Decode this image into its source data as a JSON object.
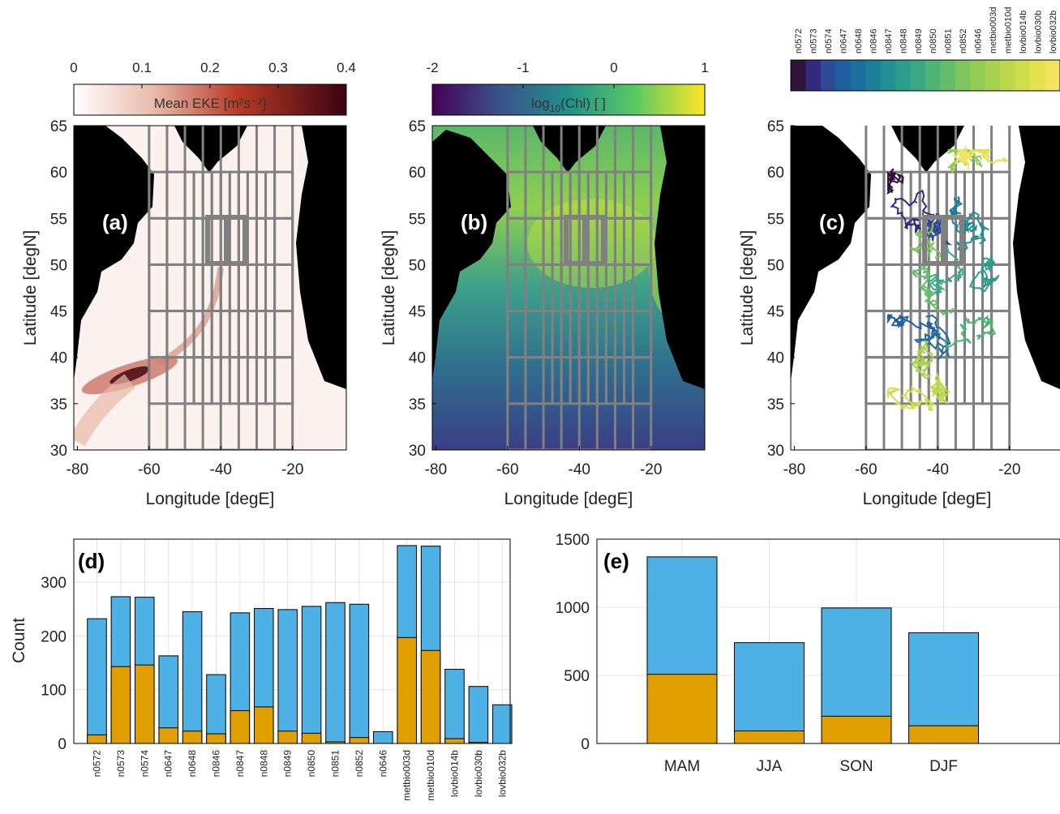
{
  "colors": {
    "land": "#000000",
    "grid": "#808080",
    "blue": "#4DB1E6",
    "orange": "#E09F00",
    "eke_low": "#ffffff",
    "eke_mid": "#b83a26",
    "eke_high": "#3a0410"
  },
  "chart_data": [
    {
      "panel": "(a)",
      "type": "heatmap",
      "colorbar_label": "Mean EKE [m²s⁻²]",
      "colorbar_ticks": [
        "0",
        "0.1",
        "0.2",
        "0.3",
        "0.4"
      ],
      "colorbar_range": [
        0,
        0.4
      ],
      "xlabel": "Longitude [degE]",
      "ylabel": "Latitude [degN]",
      "xticks": [
        "-80",
        "-60",
        "-40",
        "-20"
      ],
      "yticks": [
        "30",
        "35",
        "40",
        "45",
        "50",
        "55",
        "60",
        "65"
      ],
      "xlim": [
        -81,
        -5
      ],
      "ylim": [
        30,
        65
      ],
      "grid": "on"
    },
    {
      "panel": "(b)",
      "type": "heatmap",
      "colorbar_label": "log10(Chl) [ ]",
      "colorbar_ticks": [
        "-2",
        "-1",
        "0",
        "1"
      ],
      "colorbar_range": [
        -2,
        1
      ],
      "xlabel": "Longitude [degE]",
      "ylabel": "Latitude [degN]",
      "xticks": [
        "-80",
        "-60",
        "-40",
        "-20"
      ],
      "yticks": [
        "30",
        "35",
        "40",
        "45",
        "50",
        "55",
        "60",
        "65"
      ],
      "xlim": [
        -81,
        -5
      ],
      "ylim": [
        30,
        65
      ],
      "grid": "on"
    },
    {
      "panel": "(c)",
      "type": "line",
      "legend_labels": [
        "n0572",
        "n0573",
        "n0574",
        "n0647",
        "n0648",
        "n0846",
        "n0847",
        "n0848",
        "n0849",
        "n0850",
        "n0851",
        "n0852",
        "n0646",
        "metbio003d",
        "metbio010d",
        "lovbio014b",
        "lovbio030b",
        "lovbio032b"
      ],
      "xlabel": "Longitude [degE]",
      "ylabel": "Latitude [degN]",
      "xticks": [
        "-80",
        "-60",
        "-40",
        "-20"
      ],
      "yticks": [
        "30",
        "35",
        "40",
        "45",
        "50",
        "55",
        "60",
        "65"
      ],
      "xlim": [
        -81,
        -5
      ],
      "ylim": [
        30,
        65
      ],
      "grid": "on"
    },
    {
      "panel": "(d)",
      "type": "bar",
      "categories": [
        "n0572",
        "n0573",
        "n0574",
        "n0647",
        "n0648",
        "n0846",
        "n0847",
        "n0848",
        "n0849",
        "n0850",
        "n0851",
        "n0852",
        "n0646",
        "metbio003d",
        "metbio010d",
        "lovbio014b",
        "lovbio030b",
        "lovbio032b"
      ],
      "series": [
        {
          "values": [
            16,
            143,
            146,
            29,
            23,
            18,
            61,
            68,
            23,
            19,
            3,
            11,
            0,
            197,
            173,
            9,
            2,
            0
          ]
        },
        {
          "values": [
            232,
            273,
            272,
            163,
            245,
            128,
            243,
            251,
            249,
            255,
            262,
            259,
            22,
            368,
            367,
            138,
            106,
            72
          ]
        }
      ],
      "ylabel": "Count",
      "yticks": [
        "0",
        "100",
        "200",
        "300"
      ],
      "ylim": [
        0,
        380
      ],
      "grid": "on"
    },
    {
      "panel": "(e)",
      "type": "bar",
      "categories": [
        "MAM",
        "JJA",
        "SON",
        "DJF"
      ],
      "series": [
        {
          "values": [
            508,
            92,
            200,
            130
          ]
        },
        {
          "values": [
            1370,
            740,
            995,
            813
          ]
        }
      ],
      "yticks": [
        "0",
        "500",
        "1000",
        "1500"
      ],
      "ylim": [
        0,
        1500
      ],
      "grid": "on"
    }
  ]
}
